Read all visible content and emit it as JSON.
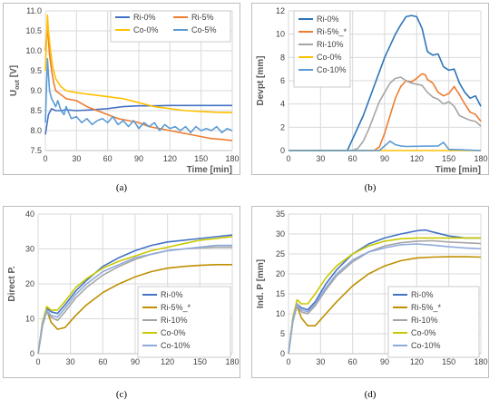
{
  "chart_data": [
    {
      "type": "line",
      "caption": "(a)",
      "ylabel": "U",
      "ylabel_sub": "out",
      "ylabel_unit": " [V]",
      "xlabel": "Time [min]",
      "xlim": [
        0,
        180
      ],
      "ylim": [
        7.5,
        11.0
      ],
      "xticks": [
        0,
        30,
        60,
        90,
        120,
        150,
        180
      ],
      "xtick_labels": [
        "0",
        "30",
        "60",
        "90",
        "120",
        "150",
        "180"
      ],
      "yticks": [
        7.5,
        8.0,
        8.5,
        9.0,
        9.5,
        10.0,
        10.5,
        11.0
      ],
      "ytick_labels": [
        "7.5",
        "8.0",
        "8.5",
        "9.0",
        "9.5",
        "10.0",
        "10.5",
        "11.0"
      ],
      "grid": true,
      "legend": "top",
      "series": [
        {
          "name": "Ri-0%",
          "color": "#4472C4",
          "x": [
            0,
            3,
            6,
            10,
            15,
            20,
            30,
            45,
            60,
            75,
            90,
            105,
            120,
            135,
            150,
            165,
            180
          ],
          "y": [
            7.9,
            8.4,
            8.55,
            8.5,
            8.5,
            8.52,
            8.5,
            8.52,
            8.55,
            8.6,
            8.62,
            8.62,
            8.63,
            8.63,
            8.63,
            8.63,
            8.63
          ]
        },
        {
          "name": "Ri-5%",
          "color": "#ED7D31",
          "x": [
            0,
            2,
            4,
            6,
            8,
            10,
            15,
            20,
            30,
            40,
            50,
            60,
            70,
            80,
            90,
            100,
            110,
            120,
            130,
            140,
            150,
            160,
            170,
            180
          ],
          "y": [
            10.0,
            10.6,
            9.9,
            9.5,
            9.2,
            9.0,
            8.9,
            8.8,
            8.75,
            8.6,
            8.5,
            8.4,
            8.3,
            8.25,
            8.2,
            8.1,
            8.05,
            8.0,
            7.95,
            7.9,
            7.85,
            7.8,
            7.78,
            7.75
          ]
        },
        {
          "name": "Co-0%",
          "color": "#FFC000",
          "x": [
            0,
            2,
            3,
            5,
            7,
            10,
            15,
            20,
            30,
            45,
            60,
            75,
            90,
            105,
            120,
            135,
            150,
            165,
            180
          ],
          "y": [
            9.5,
            10.9,
            10.5,
            10.0,
            9.6,
            9.3,
            9.1,
            9.0,
            8.95,
            8.9,
            8.85,
            8.8,
            8.7,
            8.6,
            8.55,
            8.5,
            8.48,
            8.46,
            8.45
          ]
        },
        {
          "name": "Co-5%",
          "color": "#5B9BD5",
          "x": [
            0,
            2,
            4,
            6,
            8,
            10,
            12,
            15,
            18,
            20,
            25,
            30,
            35,
            40,
            45,
            50,
            55,
            60,
            65,
            70,
            75,
            80,
            85,
            90,
            95,
            100,
            105,
            110,
            115,
            120,
            125,
            130,
            135,
            140,
            145,
            150,
            155,
            160,
            165,
            170,
            175,
            180
          ],
          "y": [
            8.2,
            9.8,
            9.0,
            8.8,
            8.7,
            8.6,
            8.75,
            8.5,
            8.4,
            8.6,
            8.3,
            8.35,
            8.2,
            8.3,
            8.15,
            8.25,
            8.3,
            8.2,
            8.35,
            8.15,
            8.25,
            8.1,
            8.25,
            8.05,
            8.2,
            8.1,
            8.2,
            8.0,
            8.15,
            8.05,
            8.1,
            8.0,
            8.1,
            7.95,
            8.1,
            8.0,
            8.05,
            8.0,
            8.1,
            7.95,
            8.05,
            8.0
          ]
        }
      ]
    },
    {
      "type": "line",
      "caption": "(b)",
      "ylabel": "Devpt [mm]",
      "xlabel": "Time [min]",
      "xlim": [
        0,
        180
      ],
      "ylim": [
        0,
        12
      ],
      "xticks": [
        0,
        30,
        60,
        90,
        120,
        150,
        180
      ],
      "xtick_labels": [
        "0",
        "30",
        "60",
        "90",
        "120",
        "150",
        "180"
      ],
      "yticks": [
        0,
        2,
        4,
        6,
        8,
        10,
        12
      ],
      "ytick_labels": [
        "0",
        "2",
        "4",
        "6",
        "8",
        "10",
        "12"
      ],
      "grid": true,
      "legend": "left",
      "series": [
        {
          "name": "Ri-0%",
          "color": "#2E75B6",
          "x": [
            0,
            55,
            60,
            70,
            80,
            90,
            100,
            105,
            110,
            115,
            120,
            125,
            130,
            135,
            140,
            145,
            150,
            155,
            160,
            165,
            170,
            175,
            180
          ],
          "y": [
            0,
            0,
            1,
            3,
            5.5,
            8,
            10,
            10.8,
            11.5,
            11.6,
            11.5,
            10.5,
            8.5,
            8.2,
            8.3,
            7.2,
            6.9,
            7.0,
            5.8,
            5.0,
            4.5,
            4.7,
            3.8
          ]
        },
        {
          "name": "Ri-5%_*",
          "color": "#ED7D31",
          "x": [
            0,
            80,
            85,
            90,
            95,
            100,
            105,
            110,
            115,
            120,
            125,
            128,
            130,
            135,
            140,
            145,
            150,
            155,
            160,
            165,
            170,
            175,
            180
          ],
          "y": [
            0,
            0,
            0.3,
            1.5,
            3,
            4.5,
            5.5,
            6.0,
            5.9,
            6.2,
            6.6,
            6.5,
            6.1,
            5.8,
            5.0,
            4.7,
            4.9,
            5.5,
            4.8,
            4.0,
            3.3,
            3.1,
            2.5
          ]
        },
        {
          "name": "Ri-10%",
          "color": "#A5A5A5",
          "x": [
            0,
            60,
            65,
            70,
            75,
            80,
            85,
            90,
            95,
            100,
            105,
            110,
            115,
            120,
            125,
            130,
            135,
            140,
            145,
            150,
            155,
            160,
            165,
            170,
            175,
            180
          ],
          "y": [
            0,
            0,
            0.2,
            0.8,
            1.8,
            3,
            4.2,
            5.0,
            5.8,
            6.2,
            6.3,
            6.0,
            5.8,
            5.7,
            5.6,
            5.0,
            4.6,
            4.4,
            4.0,
            4.2,
            3.8,
            3.0,
            2.8,
            2.6,
            2.5,
            2.1
          ]
        },
        {
          "name": "Co-0%",
          "color": "#FFC000",
          "x": [
            0,
            180
          ],
          "y": [
            0,
            0
          ]
        },
        {
          "name": "Co-10%",
          "color": "#5B9BD5",
          "x": [
            0,
            85,
            90,
            95,
            100,
            105,
            110,
            140,
            145,
            150,
            180
          ],
          "y": [
            0,
            0,
            0.4,
            0.8,
            0.5,
            0.4,
            0.35,
            0.4,
            0.7,
            0.1,
            0
          ]
        }
      ]
    },
    {
      "type": "line",
      "caption": "(c)",
      "ylabel": "Direct P.",
      "xlabel": "",
      "xlim": [
        0,
        180
      ],
      "ylim": [
        0,
        40
      ],
      "xticks": [
        0,
        30,
        60,
        90,
        120,
        150,
        180
      ],
      "xtick_labels": [
        "0",
        "30",
        "60",
        "90",
        "120",
        "150",
        "180"
      ],
      "yticks": [
        0,
        10,
        20,
        30,
        40
      ],
      "ytick_labels": [
        "0",
        "10",
        "20",
        "30",
        "40"
      ],
      "grid": true,
      "legend": "bottom-right",
      "series": [
        {
          "name": "Ri-0%",
          "color": "#4472C4",
          "x": [
            0,
            4,
            8,
            12,
            18,
            25,
            35,
            45,
            60,
            75,
            90,
            105,
            120,
            135,
            150,
            165,
            180
          ],
          "y": [
            0,
            8,
            13,
            12,
            11.5,
            14,
            18,
            21,
            25,
            27.5,
            29.5,
            31,
            32,
            32.5,
            33,
            33.5,
            34
          ]
        },
        {
          "name": "Ri-5%_*",
          "color": "#BF8F00",
          "x": [
            0,
            4,
            8,
            12,
            18,
            25,
            35,
            45,
            60,
            75,
            90,
            105,
            120,
            135,
            150,
            165,
            180
          ],
          "y": [
            0,
            9,
            12.5,
            9,
            7,
            7.5,
            11,
            14,
            17.5,
            20,
            22,
            23.5,
            24.5,
            25,
            25.3,
            25.5,
            25.5
          ]
        },
        {
          "name": "Ri-10%",
          "color": "#A5A5A5",
          "x": [
            0,
            4,
            8,
            12,
            18,
            25,
            35,
            45,
            60,
            75,
            90,
            105,
            120,
            135,
            150,
            165,
            180
          ],
          "y": [
            0,
            8,
            12,
            10.5,
            9.5,
            12,
            16,
            19,
            22.5,
            25,
            27,
            28.5,
            29.5,
            30,
            30.3,
            30.5,
            30.5
          ]
        },
        {
          "name": "Co-0%",
          "color": "#C9C900",
          "x": [
            0,
            4,
            8,
            12,
            18,
            25,
            35,
            45,
            60,
            75,
            90,
            105,
            120,
            135,
            150,
            165,
            180
          ],
          "y": [
            0,
            9,
            13.5,
            12.5,
            12.5,
            15,
            19,
            21.5,
            24.5,
            26.5,
            28,
            29.5,
            30.5,
            31.5,
            32.5,
            33,
            33.5
          ]
        },
        {
          "name": "Co-10%",
          "color": "#8EA9DB",
          "x": [
            0,
            4,
            8,
            12,
            18,
            25,
            35,
            45,
            60,
            75,
            90,
            105,
            120,
            135,
            150,
            165,
            180
          ],
          "y": [
            0,
            8.5,
            12.5,
            11,
            10.5,
            13,
            17,
            20,
            23.5,
            25.5,
            27.5,
            28.5,
            29.5,
            30,
            30.5,
            31,
            31
          ]
        }
      ]
    },
    {
      "type": "line",
      "caption": "(d)",
      "ylabel": "Ind. P [mm]",
      "xlabel": "",
      "xlim": [
        0,
        180
      ],
      "ylim": [
        0,
        35
      ],
      "xticks": [
        0,
        30,
        60,
        90,
        120,
        150,
        180
      ],
      "xtick_labels": [
        "0",
        "30",
        "60",
        "90",
        "120",
        "150",
        "180"
      ],
      "yticks": [
        0,
        5,
        10,
        15,
        20,
        25,
        30,
        35
      ],
      "ytick_labels": [
        "0",
        "5",
        "10",
        "15",
        "20",
        "25",
        "30",
        "35"
      ],
      "grid": true,
      "legend": "bottom-right",
      "series": [
        {
          "name": "Ri-0%",
          "color": "#4472C4",
          "x": [
            0,
            4,
            8,
            12,
            18,
            25,
            35,
            45,
            60,
            75,
            90,
            105,
            120,
            128,
            135,
            150,
            165,
            180
          ],
          "y": [
            0,
            8,
            12.5,
            11.5,
            11,
            13,
            17.5,
            21,
            25,
            27.5,
            29,
            30,
            30.8,
            31,
            30.5,
            29.5,
            29,
            29
          ]
        },
        {
          "name": "Ri-5%_*",
          "color": "#BF8F00",
          "x": [
            0,
            4,
            8,
            12,
            18,
            25,
            35,
            45,
            60,
            75,
            90,
            105,
            120,
            135,
            150,
            165,
            180
          ],
          "y": [
            0,
            8.5,
            12,
            9,
            7,
            7,
            10,
            13,
            17,
            20,
            22,
            23.3,
            24,
            24.2,
            24.3,
            24.3,
            24.2
          ]
        },
        {
          "name": "Ri-10%",
          "color": "#A5A5A5",
          "x": [
            0,
            4,
            8,
            12,
            18,
            25,
            35,
            45,
            60,
            75,
            90,
            105,
            120,
            135,
            150,
            165,
            180
          ],
          "y": [
            0,
            8,
            12,
            10.5,
            10,
            12,
            16,
            19.5,
            23,
            25.5,
            27,
            27.8,
            28.2,
            28.3,
            28,
            27.8,
            27.6
          ]
        },
        {
          "name": "Co-0%",
          "color": "#C9C900",
          "x": [
            0,
            4,
            8,
            12,
            18,
            25,
            35,
            45,
            60,
            75,
            90,
            105,
            120,
            135,
            150,
            165,
            180
          ],
          "y": [
            0,
            9,
            13.5,
            12.5,
            12.5,
            15,
            19,
            22,
            25,
            27,
            28.2,
            28.8,
            29,
            29,
            29,
            29,
            29
          ]
        },
        {
          "name": "Co-10%",
          "color": "#8EA9DB",
          "x": [
            0,
            4,
            8,
            12,
            18,
            25,
            35,
            45,
            60,
            75,
            90,
            105,
            120,
            135,
            150,
            165,
            180
          ],
          "y": [
            0,
            8.5,
            12.5,
            11,
            10.5,
            12.5,
            16.5,
            20,
            23.5,
            25.5,
            26.5,
            27.3,
            27.5,
            27.2,
            26.8,
            26.5,
            26.3
          ]
        }
      ]
    }
  ]
}
